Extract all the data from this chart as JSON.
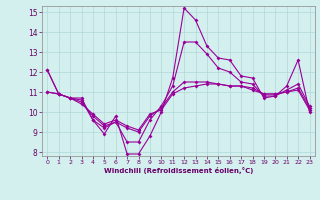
{
  "xlabel": "Windchill (Refroidissement éolien,°C)",
  "bg_color": "#d4f0ee",
  "line_color": "#990099",
  "grid_color": "#b0d8d8",
  "xlim": [
    -0.5,
    23.5
  ],
  "ylim": [
    7.8,
    15.3
  ],
  "yticks": [
    8,
    9,
    10,
    11,
    12,
    13,
    14,
    15
  ],
  "xticks": [
    0,
    1,
    2,
    3,
    4,
    5,
    6,
    7,
    8,
    9,
    10,
    11,
    12,
    13,
    14,
    15,
    16,
    17,
    18,
    19,
    20,
    21,
    22,
    23
  ],
  "line1": [
    12.1,
    10.9,
    10.7,
    10.7,
    9.6,
    8.9,
    9.8,
    7.9,
    7.9,
    8.8,
    10.0,
    11.7,
    15.2,
    14.6,
    13.3,
    12.7,
    12.6,
    11.8,
    11.7,
    10.7,
    10.8,
    11.3,
    12.6,
    10.0
  ],
  "line2": [
    12.1,
    10.9,
    10.7,
    10.6,
    9.6,
    9.2,
    9.5,
    8.5,
    8.5,
    9.6,
    10.3,
    11.3,
    13.5,
    13.5,
    12.9,
    12.2,
    12.0,
    11.5,
    11.4,
    10.8,
    10.8,
    11.1,
    11.4,
    10.3
  ],
  "line3": [
    11.0,
    10.9,
    10.7,
    10.5,
    9.8,
    9.3,
    9.5,
    9.2,
    9.0,
    9.8,
    10.2,
    11.0,
    11.5,
    11.5,
    11.5,
    11.4,
    11.3,
    11.3,
    11.2,
    10.9,
    10.9,
    11.0,
    11.2,
    10.2
  ],
  "line4": [
    11.0,
    10.9,
    10.7,
    10.4,
    9.9,
    9.4,
    9.6,
    9.3,
    9.1,
    9.9,
    10.1,
    10.9,
    11.2,
    11.3,
    11.4,
    11.4,
    11.3,
    11.3,
    11.1,
    10.9,
    10.9,
    11.0,
    11.1,
    10.1
  ]
}
